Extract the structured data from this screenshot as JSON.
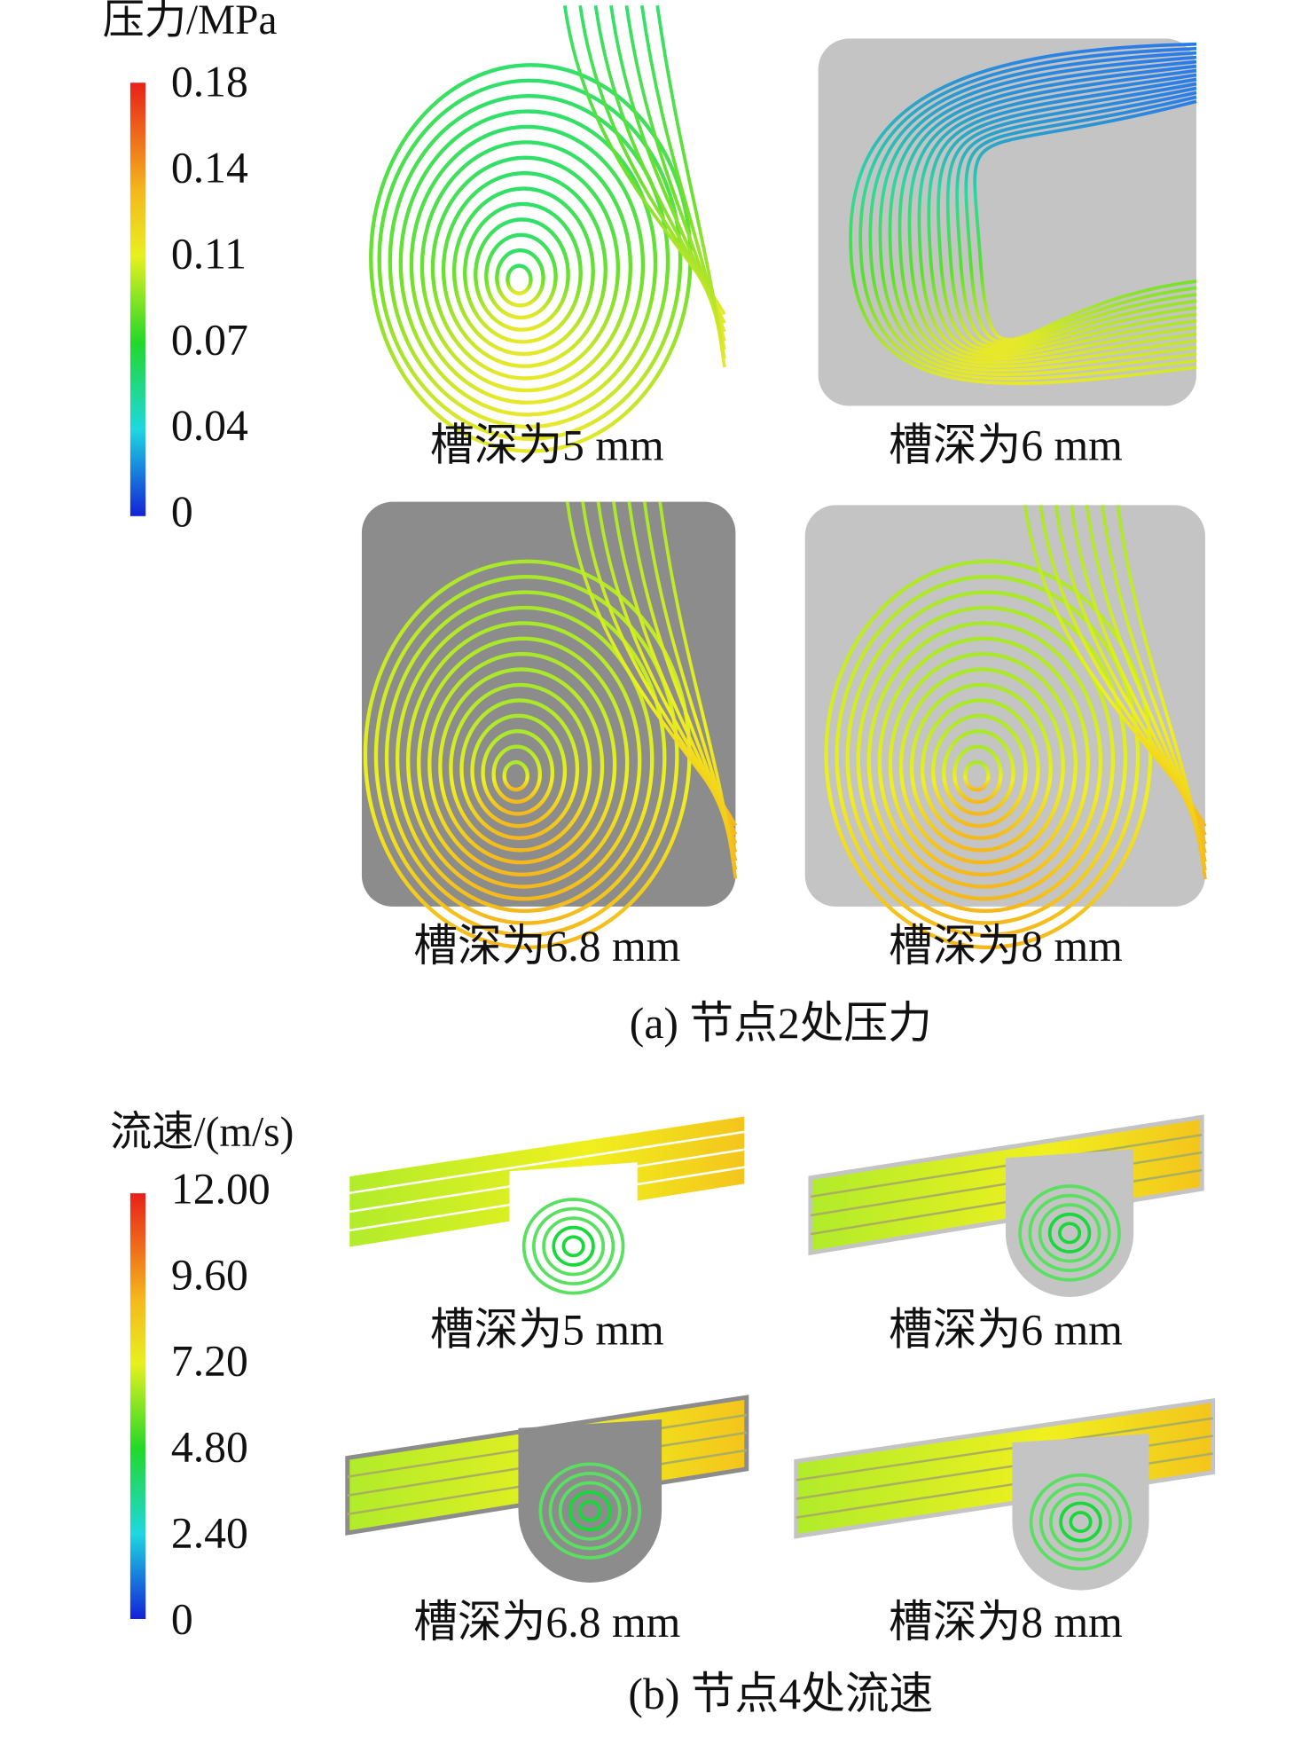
{
  "panel_a": {
    "legend": {
      "title": "压力/MPa",
      "ticks": [
        "0.18",
        "0.14",
        "0.11",
        "0.07",
        "0.04",
        "0"
      ]
    },
    "subplots": [
      "槽深为5 mm",
      "槽深为6 mm",
      "槽深为6.8 mm",
      "槽深为8 mm"
    ],
    "caption": "(a) 节点2处压力"
  },
  "panel_b": {
    "legend": {
      "title": "流速/(m/s)",
      "ticks": [
        "12.00",
        "9.60",
        "7.20",
        "4.80",
        "2.40",
        "0"
      ]
    },
    "subplots": [
      "槽深为5 mm",
      "槽深为6 mm",
      "槽深为6.8 mm",
      "槽深为8 mm"
    ],
    "caption": "(b) 节点4处流速"
  }
}
